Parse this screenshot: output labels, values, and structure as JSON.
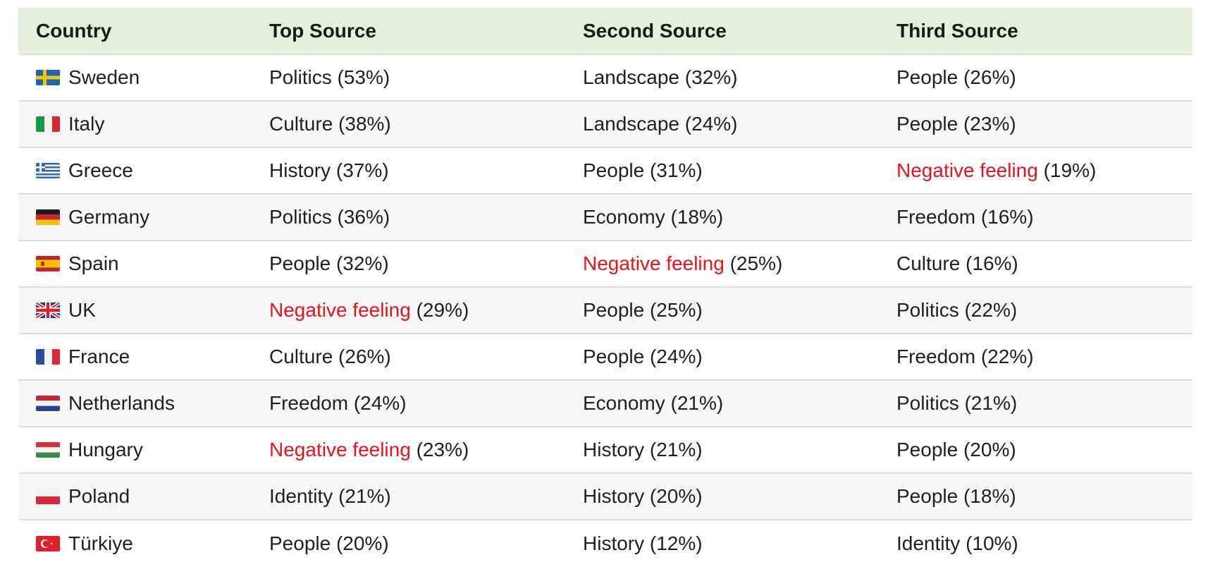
{
  "headers": [
    "Country",
    "Top Source",
    "Second Source",
    "Third Source"
  ],
  "rows": [
    {
      "country": "Sweden",
      "flag": "sweden-flag-icon",
      "sources": [
        {
          "label": "Politics",
          "pct": "(53%)",
          "neg": false
        },
        {
          "label": "Landscape",
          "pct": "(32%)",
          "neg": false
        },
        {
          "label": "People",
          "pct": "(26%)",
          "neg": false
        }
      ]
    },
    {
      "country": "Italy",
      "flag": "italy-flag-icon",
      "sources": [
        {
          "label": "Culture",
          "pct": "(38%)",
          "neg": false
        },
        {
          "label": "Landscape",
          "pct": "(24%)",
          "neg": false
        },
        {
          "label": "People",
          "pct": "(23%)",
          "neg": false
        }
      ]
    },
    {
      "country": "Greece",
      "flag": "greece-flag-icon",
      "sources": [
        {
          "label": "History",
          "pct": "(37%)",
          "neg": false
        },
        {
          "label": "People",
          "pct": "(31%)",
          "neg": false
        },
        {
          "label": "Negative feeling",
          "pct": "(19%)",
          "neg": true
        }
      ]
    },
    {
      "country": "Germany",
      "flag": "germany-flag-icon",
      "sources": [
        {
          "label": "Politics",
          "pct": "(36%)",
          "neg": false
        },
        {
          "label": "Economy",
          "pct": "(18%)",
          "neg": false
        },
        {
          "label": "Freedom",
          "pct": "(16%)",
          "neg": false
        }
      ]
    },
    {
      "country": "Spain",
      "flag": "spain-flag-icon",
      "sources": [
        {
          "label": "People",
          "pct": "(32%)",
          "neg": false
        },
        {
          "label": "Negative feeling",
          "pct": "(25%)",
          "neg": true
        },
        {
          "label": "Culture",
          "pct": "(16%)",
          "neg": false
        }
      ]
    },
    {
      "country": "UK",
      "flag": "uk-flag-icon",
      "sources": [
        {
          "label": "Negative feeling",
          "pct": "(29%)",
          "neg": true
        },
        {
          "label": "People",
          "pct": "(25%)",
          "neg": false
        },
        {
          "label": "Politics",
          "pct": "(22%)",
          "neg": false
        }
      ]
    },
    {
      "country": "France",
      "flag": "france-flag-icon",
      "sources": [
        {
          "label": "Culture",
          "pct": "(26%)",
          "neg": false
        },
        {
          "label": "People",
          "pct": "(24%)",
          "neg": false
        },
        {
          "label": "Freedom",
          "pct": "(22%)",
          "neg": false
        }
      ]
    },
    {
      "country": "Netherlands",
      "flag": "netherlands-flag-icon",
      "sources": [
        {
          "label": "Freedom",
          "pct": "(24%)",
          "neg": false
        },
        {
          "label": "Economy",
          "pct": "(21%)",
          "neg": false
        },
        {
          "label": "Politics",
          "pct": "(21%)",
          "neg": false
        }
      ]
    },
    {
      "country": "Hungary",
      "flag": "hungary-flag-icon",
      "sources": [
        {
          "label": "Negative feeling",
          "pct": "(23%)",
          "neg": true
        },
        {
          "label": "History",
          "pct": "(21%)",
          "neg": false
        },
        {
          "label": "People",
          "pct": "(20%)",
          "neg": false
        }
      ]
    },
    {
      "country": "Poland",
      "flag": "poland-flag-icon",
      "sources": [
        {
          "label": "Identity",
          "pct": "(21%)",
          "neg": false
        },
        {
          "label": "History",
          "pct": "(20%)",
          "neg": false
        },
        {
          "label": "People",
          "pct": "(18%)",
          "neg": false
        }
      ]
    },
    {
      "country": "Türkiye",
      "flag": "turkiye-flag-icon",
      "sources": [
        {
          "label": "People",
          "pct": "(20%)",
          "neg": false
        },
        {
          "label": "History",
          "pct": "(12%)",
          "neg": false
        },
        {
          "label": "Identity",
          "pct": "(10%)",
          "neg": false
        }
      ]
    }
  ],
  "colors": {
    "header_bg": "#e6eedc",
    "negative": "#e8141b",
    "row_alt": "#f7f7f7"
  }
}
